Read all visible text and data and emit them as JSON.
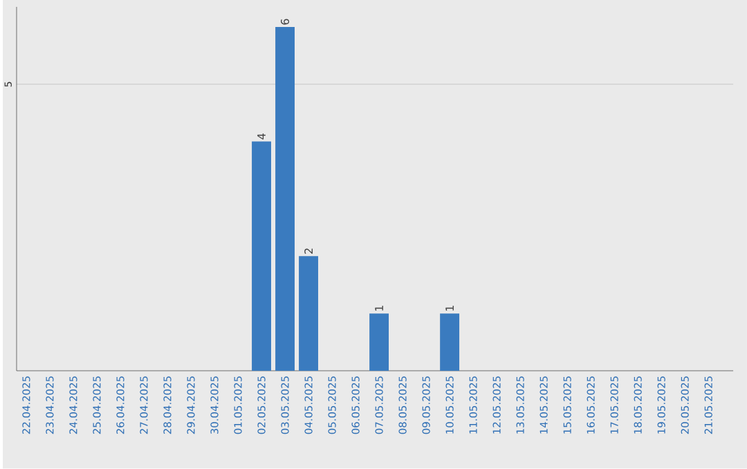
{
  "chart_data": {
    "type": "bar",
    "categories": [
      "22.04.2025",
      "23.04.2025",
      "24.04.2025",
      "25.04.2025",
      "26.04.2025",
      "27.04.2025",
      "28.04.2025",
      "29.04.2025",
      "30.04.2025",
      "01.05.2025",
      "02.05.2025",
      "03.05.2025",
      "04.05.2025",
      "05.05.2025",
      "06.05.2025",
      "07.05.2025",
      "08.05.2025",
      "09.05.2025",
      "10.05.2025",
      "11.05.2025",
      "12.05.2025",
      "13.05.2025",
      "14.05.2025",
      "15.05.2025",
      "16.05.2025",
      "17.05.2025",
      "18.05.2025",
      "19.05.2025",
      "20.05.2025",
      "21.05.2025"
    ],
    "values": [
      0,
      0,
      0,
      0,
      0,
      0,
      0,
      0,
      0,
      0,
      4,
      6,
      2,
      0,
      0,
      1,
      0,
      0,
      1,
      0,
      0,
      0,
      0,
      0,
      0,
      0,
      0,
      0,
      0,
      0
    ],
    "value_labels": [
      null,
      null,
      null,
      null,
      null,
      null,
      null,
      null,
      null,
      null,
      "4",
      "6",
      "2",
      null,
      null,
      "1",
      null,
      null,
      "1",
      null,
      null,
      null,
      null,
      null,
      null,
      null,
      null,
      null,
      null,
      null
    ],
    "color": "#3a7bbf",
    "ylim": [
      0,
      6.35
    ],
    "yticks": [
      5
    ],
    "grid": "y"
  }
}
